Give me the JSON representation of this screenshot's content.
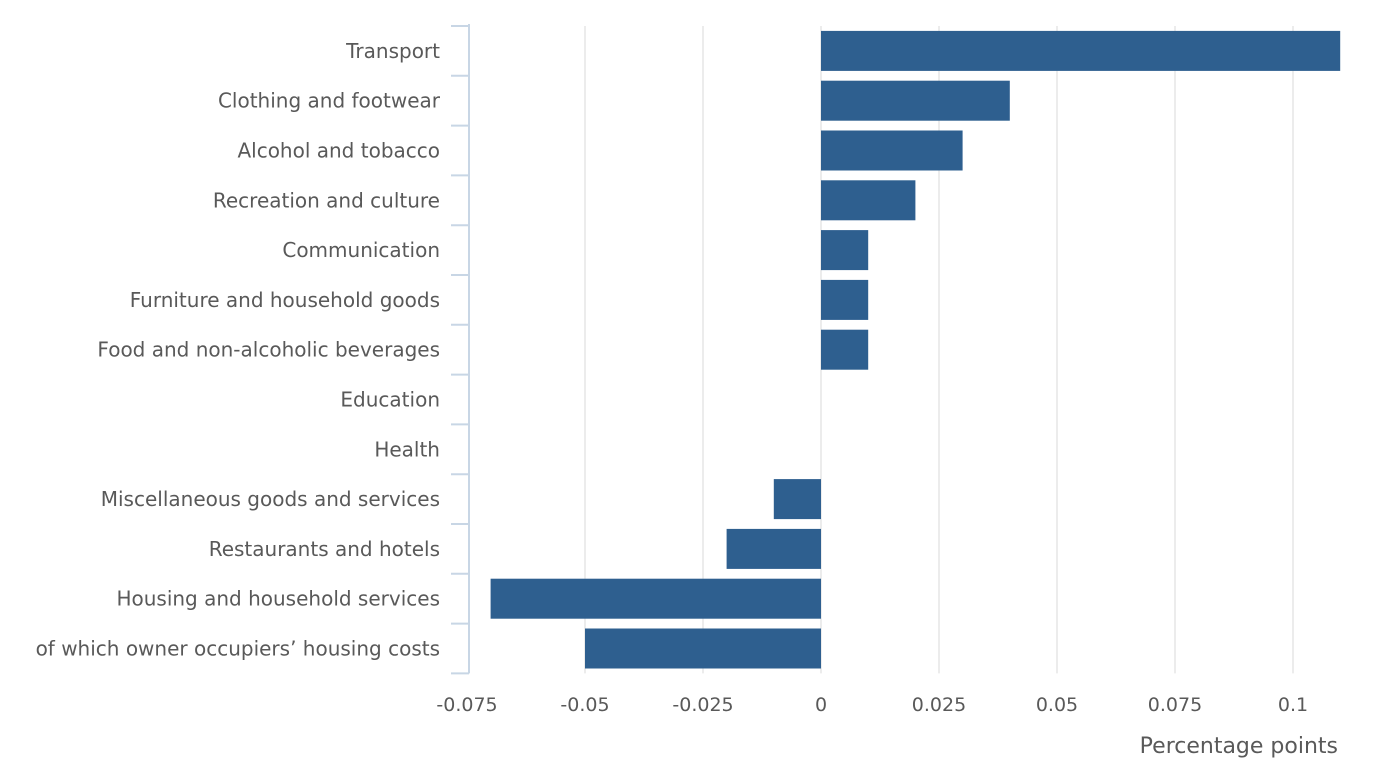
{
  "chart_data": {
    "type": "bar",
    "orientation": "horizontal",
    "categories": [
      "Transport",
      "Clothing and footwear",
      "Alcohol and tobacco",
      "Recreation and culture",
      "Communication",
      "Furniture and household goods",
      "Food and non-alcoholic beverages",
      "Education",
      "Health",
      "Miscellaneous goods and services",
      "Restaurants and hotels",
      "Housing and household services",
      "of which owner occupiers’ housing costs"
    ],
    "values": [
      0.11,
      0.04,
      0.03,
      0.02,
      0.01,
      0.01,
      0.01,
      0,
      0,
      -0.01,
      -0.02,
      -0.07,
      -0.05
    ],
    "xlim": [
      -0.075,
      0.11
    ],
    "xticks": [
      -0.075,
      -0.05,
      -0.025,
      0,
      0.025,
      0.05,
      0.075,
      0.1
    ],
    "xtick_labels": [
      "-0.075",
      "-0.05",
      "-0.025",
      "0",
      "0.025",
      "0.05",
      "0.075",
      "0.1"
    ],
    "xlabel": "Percentage points",
    "ylabel": "",
    "title": "",
    "grid": "vertical",
    "legend": "none",
    "colors": {
      "bar": "#2e5f8f",
      "grid": "#e0e0e0",
      "axis": "#c8d6e5",
      "text": "#595959"
    }
  }
}
